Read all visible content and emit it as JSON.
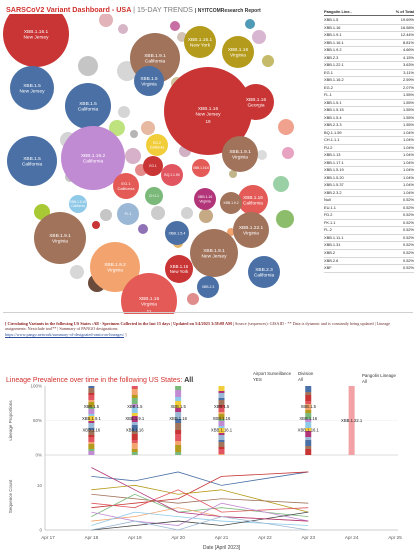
{
  "header": {
    "title": "SARSCoV2 Variant Dashboard - USA",
    "subtitle": "15-DAY TRENDS",
    "report": "NYITCOMResearch Report"
  },
  "bubbles": [
    {
      "label": "XBB.1.16.1",
      "region": "New Jersey",
      "color": "#c93434"
    },
    {
      "label": "XBB.1.9.1",
      "region": "California",
      "color": "#a1735b"
    },
    {
      "label": "XBB.1.16.1",
      "region": "New York",
      "color": "#b59b1b"
    },
    {
      "label": "XBB.1.16",
      "region": "Virginia",
      "color": "#b59b1b"
    },
    {
      "label": "XBB.1.16",
      "region": "New Jersey",
      "color": "#c93434"
    },
    {
      "label": "XBB.1.5",
      "region": "Virginia",
      "color": "#4a70a5"
    },
    {
      "label": "XBB.1.16",
      "region": "Georgia",
      "color": "#c93434"
    },
    {
      "label": "XBB.1.5",
      "region": "California",
      "color": "#4a70a5"
    },
    {
      "label": "XBB.1.5",
      "region": "New Jersey",
      "color": "#4a70a5"
    },
    {
      "label": "XBB.1.16.2",
      "region": "California",
      "color": "#c18bd4"
    },
    {
      "label": "XBB.1.5",
      "region": "California",
      "color": "#4a70a5"
    },
    {
      "label": "EG.2",
      "region": "California",
      "color": "#f2cd3a"
    },
    {
      "label": "XBB.1.9.1",
      "region": "Virginia",
      "color": "#a1735b"
    },
    {
      "label": "XBB.1.16",
      "region": "California",
      "color": "#e45a56"
    },
    {
      "label": "EG.1",
      "region": "California",
      "color": "#e45a56"
    },
    {
      "label": "EG.1",
      "region": "",
      "color": "#c93434"
    },
    {
      "label": "BQ.1.1.59",
      "region": "",
      "color": "#e0555f"
    },
    {
      "label": "XBB.1.16.6",
      "region": "",
      "color": "#e45a56"
    },
    {
      "label": "XBB.1.5.15",
      "region": "California",
      "color": "#8ec9e8"
    },
    {
      "label": "CH.1.1",
      "region": "",
      "color": "#7ab97a"
    },
    {
      "label": "XBB.1.16",
      "region": "Virginia",
      "color": "#b2357a"
    },
    {
      "label": "XBB.1.9.2",
      "region": "",
      "color": "#a1735b"
    },
    {
      "label": "XBB.1.22.1",
      "region": "Virginia",
      "color": "#a1735b"
    },
    {
      "label": "FL.1",
      "region": "",
      "color": "#9ab8d6"
    },
    {
      "label": "XBB.1.5.4",
      "region": "",
      "color": "#4a70a5"
    },
    {
      "label": "XBB.1.9.1",
      "region": "New Jersey",
      "color": "#a1735b"
    },
    {
      "label": "XBB.1.9.1",
      "region": "Virginia",
      "color": "#a1735b"
    },
    {
      "label": "XBB.1.9.2",
      "region": "Virginia",
      "color": "#f3a46e"
    },
    {
      "label": "XBB.1.16",
      "region": "New York",
      "color": "#c93434"
    },
    {
      "label": "XBB.2.3",
      "region": "California",
      "color": "#4a70a5"
    },
    {
      "label": "XBB.1.16",
      "region": "Virginia",
      "color": "#e45a56"
    },
    {
      "label": "XBB.2.3",
      "region": "",
      "color": "#4a70a5"
    }
  ],
  "bubble_values": {
    "xbb15_nj": "19",
    "xbb116_va": "11"
  },
  "lineage_table": {
    "headers": [
      "Pangolin Line..",
      "% of Total"
    ],
    "rows": [
      [
        "XBB.1.5",
        "19.69%"
      ],
      [
        "XBB.1.16",
        "16.58%"
      ],
      [
        "XBB.1.9.1",
        "12.44%"
      ],
      [
        "XBB.1.16.1",
        "8.81%"
      ],
      [
        "XBB.1.9.2",
        "4.66%"
      ],
      [
        "XBB.2.3",
        "4.15%"
      ],
      [
        "XBB.1.22.1",
        "3.63%"
      ],
      [
        "EG.1",
        "3.11%"
      ],
      [
        "XBB.1.16.2",
        "2.59%"
      ],
      [
        "EG.2",
        "2.07%"
      ],
      [
        "FL.1",
        "1.55%"
      ],
      [
        "XBB.1.5.1",
        "1.55%"
      ],
      [
        "XBB.1.5.15",
        "1.55%"
      ],
      [
        "XBB.1.5.4",
        "1.55%"
      ],
      [
        "XBB.2.3.3",
        "1.55%"
      ],
      [
        "BQ.1.1.59",
        "1.04%"
      ],
      [
        "CH.1.1.1",
        "1.04%"
      ],
      [
        "FU.2",
        "1.04%"
      ],
      [
        "XBB.1.13",
        "1.04%"
      ],
      [
        "XBB.1.17.1",
        "1.04%"
      ],
      [
        "XBB.1.5.19",
        "1.04%"
      ],
      [
        "XBB.1.5.20",
        "1.04%"
      ],
      [
        "XBB.1.5.37",
        "1.04%"
      ],
      [
        "XBB.2.3.2",
        "1.04%"
      ],
      [
        "Null",
        "0.52%"
      ],
      [
        "EU.1.1",
        "0.52%"
      ],
      [
        "FD.2",
        "0.52%"
      ],
      [
        "FK.1.1",
        "0.52%"
      ],
      [
        "FL.2",
        "0.52%"
      ],
      [
        "XBB.1.11.1",
        "0.52%"
      ],
      [
        "XBB.1.31",
        "0.52%"
      ],
      [
        "XBB.2",
        "0.52%"
      ],
      [
        "XBB.2.6",
        "0.52%"
      ],
      [
        "XBF",
        "0.52%"
      ]
    ]
  },
  "circulating": {
    "lead": "[ Circulating Variants in the following US States :",
    "state": "All",
    "mid": " - Specimen Collected in the last 15 days",
    "updated": " | Updated on 5/4/2023 3:58:08 AM |",
    "source": " Source (sequences): GISAID - ** Data is dynamic and is constantly being updated | Lineage assignments: Nextclade tool** | Summary of PANGO designations:",
    "link": "https://www.pango.network/summary-of-designated-omicron-lineages/",
    "end": " ]"
  },
  "lineage_prevalence": {
    "title": "Lineage Prevalence over time in the following US States:",
    "state": "All",
    "filters": [
      {
        "label": "Airport Surveillance",
        "value": "YES"
      },
      {
        "label": "Division",
        "value": "All"
      },
      {
        "label": "Pangolin Lineage",
        "value": "All"
      }
    ],
    "y_label_top": "Lineage Proportions",
    "y_label_bottom": "Sequence Count",
    "x_label": "Date [April 2023]",
    "x_ticks": [
      "Apr 17",
      "Apr 18",
      "Apr 19",
      "Apr 20",
      "Apr 21",
      "Apr 22",
      "Apr 23",
      "Apr 24",
      "Apr 25"
    ],
    "pct_ticks": [
      "100%",
      "50%",
      "0%"
    ],
    "count_ticks": [
      "10",
      "0"
    ]
  },
  "chart_data": {
    "type": "bar",
    "title": "Lineage Prevalence over time in the following US States: All",
    "xlabel": "Date [April 2023]",
    "ylabel": "Lineage Proportions",
    "categories": [
      "Apr 18",
      "Apr 19",
      "Apr 20",
      "Apr 21",
      "Apr 23",
      "Apr 24"
    ],
    "bar_labels": [
      [
        "XBB.1.5",
        "XBB.1.9.1",
        "XBB.1.16"
      ],
      [
        "XBB.1.5",
        "XBB.1.9.1",
        "XBB.1.16"
      ],
      [
        "XBB.1.5",
        "XBB.1.16"
      ],
      [
        "XBB.1.5",
        "XBB.1.16",
        "XBB.1.16.1"
      ],
      [
        "XBB.1.5",
        "XBB.1.16",
        "XBB.1.16.1"
      ],
      [
        "XBB.1.22.1"
      ]
    ],
    "series": [
      {
        "name": "XBB.1.5",
        "values": [
          0.22,
          0.2,
          0.25,
          0.19,
          0.2,
          0
        ]
      },
      {
        "name": "XBB.1.9.1",
        "values": [
          0.16,
          0.14,
          0.12,
          0.12,
          0.11,
          0
        ]
      },
      {
        "name": "XBB.1.16",
        "values": [
          0.15,
          0.18,
          0.17,
          0.16,
          0.17,
          0
        ]
      },
      {
        "name": "XBB.1.16.1",
        "values": [
          0.08,
          0.09,
          0.08,
          0.1,
          0.1,
          0
        ]
      },
      {
        "name": "XBB.1.22.1",
        "values": [
          0,
          0,
          0,
          0,
          0,
          1.0
        ]
      }
    ],
    "ylim": [
      0,
      1
    ]
  }
}
